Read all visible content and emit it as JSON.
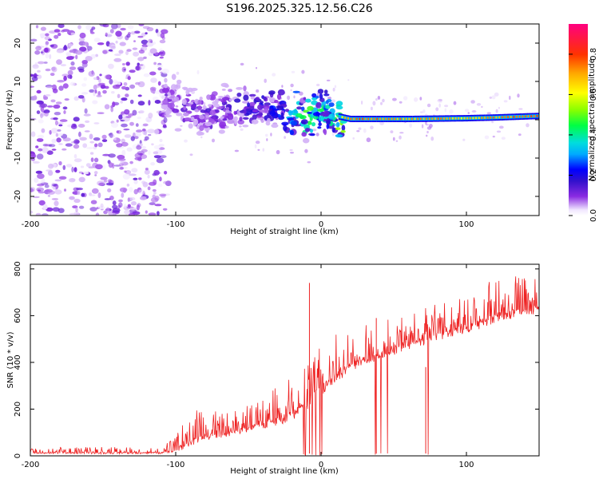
{
  "title": "S196.2025.325.12.56.C26",
  "chart_data": [
    {
      "type": "heatmap",
      "name": "spectrogram",
      "xlabel": "Height of straight line (km)",
      "ylabel": "Frequency (Hz)",
      "xlim": [
        -200,
        150
      ],
      "ylim": [
        -25,
        25
      ],
      "xticks": [
        -200,
        -100,
        0,
        100
      ],
      "yticks": [
        -20,
        -10,
        0,
        10,
        20
      ],
      "colorbar": {
        "label": "Normalized spectral amplitude",
        "range": [
          0.0,
          0.95
        ],
        "ticks": [
          0.0,
          0.2,
          0.4,
          0.6,
          0.8
        ]
      },
      "ridge": [
        {
          "x": -105,
          "freq": 6,
          "amp": 0.15
        },
        {
          "x": -95,
          "freq": 3,
          "amp": 0.2
        },
        {
          "x": -85,
          "freq": 2,
          "amp": 0.18
        },
        {
          "x": -75,
          "freq": 1,
          "amp": 0.2
        },
        {
          "x": -65,
          "freq": 3,
          "amp": 0.18
        },
        {
          "x": -55,
          "freq": 4,
          "amp": 0.22
        },
        {
          "x": -45,
          "freq": 3,
          "amp": 0.25
        },
        {
          "x": -35,
          "freq": 3.5,
          "amp": 0.25
        },
        {
          "x": -25,
          "freq": 2,
          "amp": 0.35
        },
        {
          "x": -15,
          "freq": 1,
          "amp": 0.5
        },
        {
          "x": -5,
          "freq": 0.5,
          "amp": 0.6
        },
        {
          "x": 2,
          "freq": 3,
          "amp": 0.45
        },
        {
          "x": 10,
          "freq": 1,
          "amp": 0.6
        },
        {
          "x": 20,
          "freq": 0.2,
          "amp": 0.85
        },
        {
          "x": 40,
          "freq": 0.2,
          "amp": 0.85
        },
        {
          "x": 60,
          "freq": 0.2,
          "amp": 0.8
        },
        {
          "x": 80,
          "freq": 0.3,
          "amp": 0.8
        },
        {
          "x": 100,
          "freq": 0.4,
          "amp": 0.75
        },
        {
          "x": 120,
          "freq": 0.6,
          "amp": 0.8
        },
        {
          "x": 150,
          "freq": 1,
          "amp": 0.9
        }
      ]
    },
    {
      "type": "line",
      "name": "snr",
      "xlabel": "Height of straight line (km)",
      "ylabel": "SNR (10 * v/v)",
      "xlim": [
        -200,
        150
      ],
      "ylim": [
        0,
        820
      ],
      "xticks": [
        -200,
        -100,
        0,
        100
      ],
      "yticks": [
        0,
        200,
        400,
        600,
        800
      ],
      "color": "#ee2222",
      "envelope": {
        "x": [
          -200,
          -110,
          -100,
          -90,
          -80,
          -60,
          -40,
          -20,
          -10,
          0,
          20,
          40,
          60,
          80,
          100,
          120,
          150
        ],
        "baseline": [
          12,
          12,
          20,
          60,
          80,
          100,
          130,
          170,
          220,
          280,
          380,
          430,
          470,
          510,
          540,
          590,
          630
        ],
        "peak": [
          35,
          40,
          80,
          220,
          190,
          200,
          250,
          350,
          420,
          480,
          560,
          580,
          620,
          650,
          690,
          760,
          780
        ]
      },
      "spikes": [
        {
          "x": -8,
          "y": 740
        },
        {
          "x": 38,
          "y": 590
        },
        {
          "x": 72,
          "y": 380
        }
      ]
    }
  ]
}
